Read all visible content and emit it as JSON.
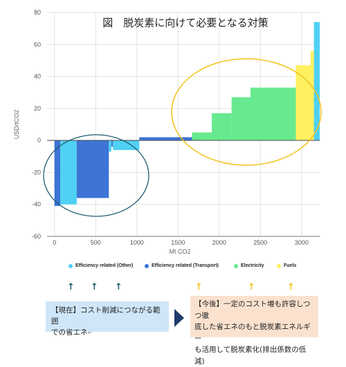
{
  "chart_data": {
    "type": "bar",
    "subtype": "marginal-abatement-cost-curve",
    "title": "図　脱炭素に向けて必要となる対策",
    "xlabel": "Mt CO2",
    "ylabel": "USD/tCO2",
    "xlim": [
      -90,
      3220
    ],
    "ylim": [
      -60,
      80
    ],
    "x_ticks": [
      "0",
      "500",
      "1000",
      "1500",
      "2000",
      "2500",
      "3000"
    ],
    "y_ticks": [
      "-60",
      "-40",
      "-20",
      "0",
      "20",
      "40",
      "60",
      "80"
    ],
    "grid": true,
    "series": [
      {
        "name": "Efficiency related (Other)",
        "color": "#4fd0f4"
      },
      {
        "name": "Efficiency related (Transport)",
        "color": "#3d74d6"
      },
      {
        "name": "Electricity",
        "color": "#67ea8f"
      },
      {
        "name": "Fuels",
        "color": "#fff060"
      }
    ],
    "bars": [
      {
        "series": 1,
        "x0": 0,
        "x1": 70,
        "value": -41
      },
      {
        "series": 0,
        "x0": 70,
        "x1": 270,
        "value": -40
      },
      {
        "series": 1,
        "x0": 270,
        "x1": 660,
        "value": -36
      },
      {
        "series": 0,
        "x0": 660,
        "x1": 690,
        "value": -7
      },
      {
        "series": 1,
        "x0": 690,
        "x1": 710,
        "value": -4
      },
      {
        "series": 0,
        "x0": 710,
        "x1": 880,
        "value": -6
      },
      {
        "series": 0,
        "x0": 880,
        "x1": 1030,
        "value": -6
      },
      {
        "series": 1,
        "x0": 1030,
        "x1": 1670,
        "value": 2
      },
      {
        "series": 2,
        "x0": 1670,
        "x1": 1910,
        "value": 5
      },
      {
        "series": 2,
        "x0": 1910,
        "x1": 2150,
        "value": 17
      },
      {
        "series": 2,
        "x0": 2150,
        "x1": 2380,
        "value": 27
      },
      {
        "series": 2,
        "x0": 2380,
        "x1": 2930,
        "value": 33
      },
      {
        "series": 3,
        "x0": 2930,
        "x1": 3110,
        "value": 47
      },
      {
        "series": 3,
        "x0": 3110,
        "x1": 3150,
        "value": 56
      },
      {
        "series": 0,
        "x0": 3150,
        "x1": 3220,
        "value": 74
      }
    ]
  },
  "legend": [
    {
      "label": "Efficiency related (Other)",
      "color": "#4fd0f4"
    },
    {
      "label": "Efficiency related (Transport)",
      "color": "#3d74d6"
    },
    {
      "label": "Electricity",
      "color": "#67ea8f"
    },
    {
      "label": "Fuels",
      "color": "#fff060"
    }
  ],
  "arrows": {
    "symbol": "↑",
    "left_color": "#1f5e70",
    "right_color": "#f2c21b"
  },
  "highlights": {
    "left_color": "#1f5e70",
    "right_color": "#f2c21b"
  },
  "notes": {
    "current_line1": "【現在】コスト削減につながる範囲",
    "current_line2": "での省エネ",
    "future_line1": "【今後】一定のコスト増も許容しつつ徹",
    "future_line2": "底した省エネのもと脱炭素エネルギー",
    "future_line3": "も活用して脱炭素化(排出係数の低減)"
  }
}
